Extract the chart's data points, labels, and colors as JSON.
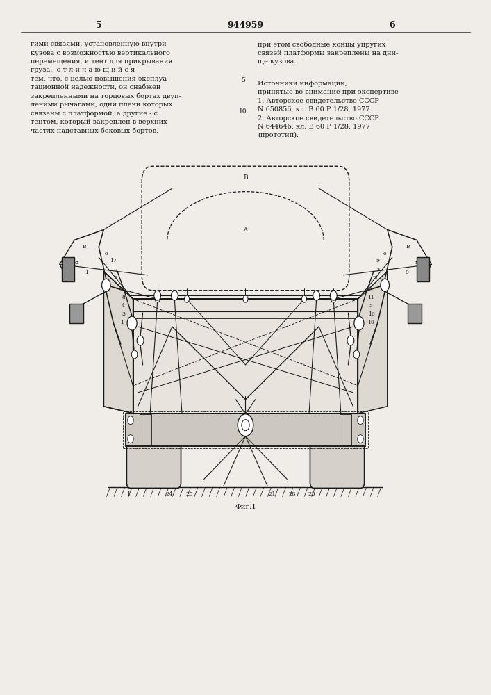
{
  "page_width": 7.07,
  "page_height": 10.0,
  "bg_color": "#f0ede8",
  "page_num_left": "5",
  "page_num_center": "944959",
  "page_num_right": "6",
  "left_text": "гими связями, установленную внутри\nкузова с возможностью вертикального\nперемещения, и тент для прикрывания\nгруза,  о т л и ч а ю щ и й с я\nтем, что, с целью повышения эксплуа-\nтационной надежности, он снабжен\nзакрепленными на торцовых бортах двуп-\nлечими рычагами, одни плечи которых\nсвязаны с платформой, а другие - с\nтентом, который закреплен в верхних\nчастлх надставных боковых бортов,",
  "right_text_top": "при этом свободные концы упругих\nсвязей платформы закреплены на дни-\nще кузова.",
  "right_text_sources": "Источники информации,\nпринятые во внимание при экспертизе\n1. Авторское свидетельство СССР\nN 650856, кл. В 60 Р 1/28, 1977.\n2. Авторское свидетельство СССР\nN 644646, кл. В 60 Р 1/28, 1977\n(прототип).",
  "fig_label": "Фиг.1",
  "text_color": "#1a1a1a",
  "draw_color": "#1a1a1a",
  "line_number_left": "5",
  "line_number_right": "10"
}
